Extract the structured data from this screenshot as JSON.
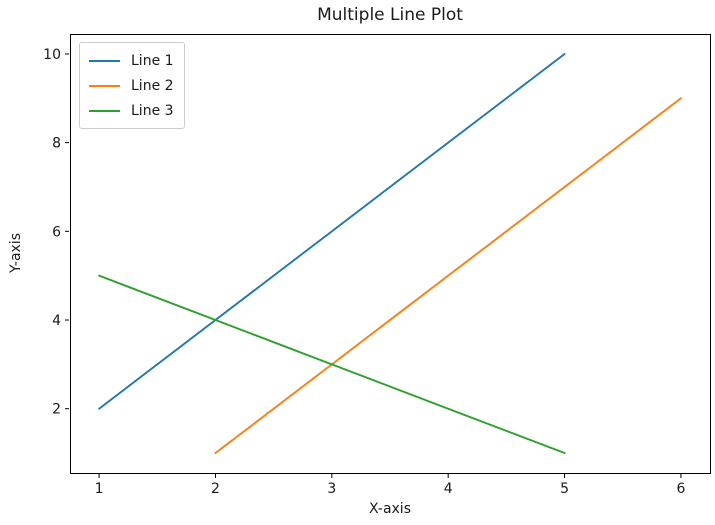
{
  "chart_data": {
    "type": "line",
    "title": "Multiple Line Plot",
    "xlabel": "X-axis",
    "ylabel": "Y-axis",
    "xlim": [
      0.75,
      6.25
    ],
    "ylim": [
      0.55,
      10.45
    ],
    "xticks": [
      1,
      2,
      3,
      4,
      5,
      6
    ],
    "yticks": [
      2,
      4,
      6,
      8,
      10
    ],
    "grid": false,
    "legend_position": "upper left",
    "background_color": "#ffffff",
    "spine_color": "#000000",
    "text_color": "#1a1a1a",
    "series": [
      {
        "name": "Line 1",
        "color": "#1f77b4",
        "x": [
          1,
          2,
          3,
          4,
          5
        ],
        "y": [
          2,
          4,
          6,
          8,
          10
        ]
      },
      {
        "name": "Line 2",
        "color": "#ff7f0e",
        "x": [
          2,
          3,
          4,
          5,
          6
        ],
        "y": [
          1,
          3,
          5,
          7,
          9
        ]
      },
      {
        "name": "Line 3",
        "color": "#2ca02c",
        "x": [
          1,
          2,
          3,
          4,
          5
        ],
        "y": [
          5,
          4,
          3,
          2,
          1
        ]
      }
    ]
  }
}
